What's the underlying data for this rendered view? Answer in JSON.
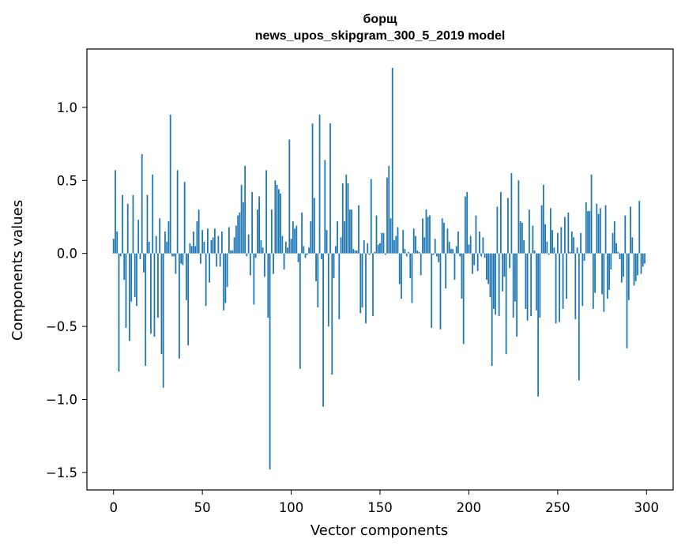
{
  "chart_data": {
    "type": "bar",
    "title": "борщ",
    "subtitle": "news_upos_skipgram_300_5_2019 model",
    "xlabel": "Vector components",
    "ylabel": "Components values",
    "xlim": [
      -15,
      315
    ],
    "ylim": [
      -1.62,
      1.4
    ],
    "xticks": [
      0,
      50,
      100,
      150,
      200,
      250,
      300
    ],
    "xtick_labels": [
      "0",
      "50",
      "100",
      "150",
      "200",
      "250",
      "300"
    ],
    "yticks": [
      -1.5,
      -1.0,
      -0.5,
      0.0,
      0.5,
      1.0
    ],
    "ytick_labels": [
      "−1.5",
      "−1.0",
      "−0.5",
      "0.0",
      "0.5",
      "1.0"
    ],
    "grid": false,
    "bar_color": "#1f77b4",
    "values": [
      0.1,
      0.57,
      0.15,
      -0.81,
      -0.02,
      0.4,
      -0.18,
      -0.51,
      0.34,
      -0.6,
      -0.33,
      0.4,
      -0.3,
      -0.36,
      0.23,
      -0.04,
      0.68,
      -0.13,
      -0.77,
      0.4,
      0.08,
      -0.55,
      0.54,
      -0.57,
      0.12,
      -0.44,
      0.24,
      -0.69,
      -0.92,
      0.15,
      0.08,
      0.22,
      0.95,
      -0.02,
      -0.02,
      -0.14,
      0.57,
      -0.72,
      -0.07,
      -0.08,
      0.49,
      -0.32,
      -0.63,
      0.07,
      0.05,
      0.15,
      0.05,
      0.22,
      0.3,
      -0.07,
      0.16,
      0.08,
      -0.36,
      0.17,
      -0.2,
      0.09,
      0.11,
      0.17,
      -0.09,
      0.12,
      -0.09,
      0.15,
      -0.39,
      -0.34,
      -0.23,
      0.18,
      0.02,
      0.02,
      0.11,
      0.19,
      0.26,
      0.28,
      0.47,
      0.35,
      0.6,
      -0.02,
      0.13,
      -0.15,
      0.42,
      -0.35,
      -0.03,
      0.3,
      0.39,
      0.09,
      0.04,
      -0.16,
      0.57,
      -0.44,
      -1.48,
      0.3,
      -0.14,
      0.5,
      0.47,
      0.44,
      0.41,
      0.12,
      -0.11,
      0.08,
      0.04,
      0.78,
      0.1,
      0.22,
      0.17,
      0.19,
      -0.06,
      -0.79,
      0.28,
      0.05,
      -0.03,
      -0.01,
      0.04,
      0.22,
      0.89,
      0.38,
      -0.19,
      -0.37,
      0.95,
      -0.04,
      -1.05,
      0.64,
      0.16,
      -0.5,
      0.89,
      -0.83,
      -0.17,
      0.05,
      0.22,
      -0.45,
      0.11,
      0.48,
      0.22,
      0.54,
      0.48,
      0.3,
      0.3,
      0.03,
      0.02,
      0.02,
      0.33,
      -0.41,
      -0.37,
      0.09,
      -0.48,
      0.07,
      -0.01,
      0.51,
      -0.43,
      0.01,
      0.26,
      0.06,
      0.07,
      0.14,
      0.14,
      -0.01,
      0.52,
      0.6,
      0.24,
      1.27,
      0.09,
      0.12,
      0.18,
      -0.21,
      -0.31,
      0.16,
      0.03,
      -0.02,
      0.01,
      -0.17,
      -0.34,
      0.17,
      0.12,
      0.02,
      0.01,
      -0.15,
      0.24,
      0.11,
      0.3,
      0.25,
      0.26,
      -0.51,
      -0.01,
      0.1,
      -0.02,
      -0.06,
      -0.52,
      0.24,
      0.21,
      -0.24,
      0.17,
      0.08,
      0.03,
      0.03,
      -0.18,
      0.05,
      0.15,
      -0.02,
      -0.31,
      -0.62,
      0.39,
      0.42,
      0.06,
      0.12,
      -0.14,
      -0.08,
      0.26,
      -0.12,
      0.15,
      -0.02,
      0.11,
      -0.03,
      -0.18,
      -0.21,
      -0.3,
      -0.77,
      -0.38,
      -0.42,
      0.32,
      -0.43,
      0.42,
      -0.26,
      -0.16,
      -0.69,
      0.38,
      -0.1,
      0.55,
      -0.44,
      -0.33,
      -0.57,
      0.5,
      0.22,
      0.21,
      0.09,
      -0.38,
      -0.46,
      0.3,
      -0.43,
      0.19,
      0.02,
      -0.39,
      -0.98,
      -0.44,
      0.33,
      0.47,
      0.2,
      0.08,
      -0.01,
      0.31,
      0.16,
      0.04,
      -0.48,
      0.14,
      -0.47,
      0.18,
      -0.38,
      0.25,
      -0.31,
      0.28,
      0.01,
      0.15,
      0.11,
      -0.45,
      0.04,
      -0.87,
      0.14,
      -0.36,
      -0.05,
      0.35,
      0.29,
      0.29,
      0.54,
      -0.38,
      -0.27,
      0.34,
      0.27,
      0.31,
      -0.28,
      -0.4,
      0.33,
      -0.31,
      -0.25,
      -0.11,
      0.14,
      0.22,
      0.07,
      0.01,
      -0.04,
      -0.2,
      -0.16,
      0.26,
      -0.65,
      -0.32,
      0.32,
      0.11,
      -0.22,
      -0.19,
      -0.15,
      0.36,
      -0.14,
      -0.09,
      -0.07
    ]
  }
}
